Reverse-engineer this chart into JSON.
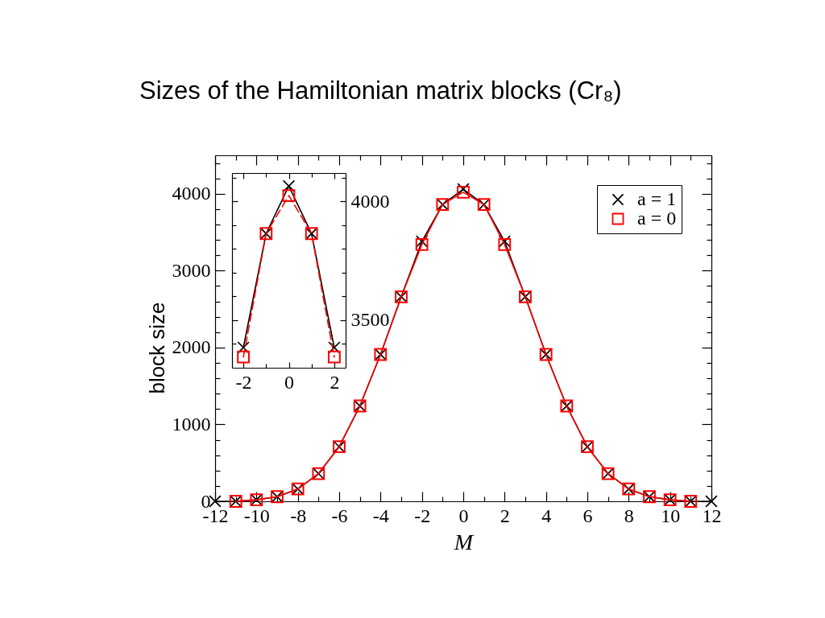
{
  "chart_data": [
    {
      "type": "line",
      "title": "Sizes of the Hamiltonian matrix blocks (Cr₈)",
      "xlabel": "M",
      "ylabel": "block size",
      "legend": "top right",
      "line_style": "solid",
      "x": [
        -12,
        -11,
        -10,
        -9,
        -8,
        -7,
        -6,
        -5,
        -4,
        -3,
        -2,
        -1,
        0,
        1,
        2,
        3,
        4,
        5,
        6,
        7,
        8,
        9,
        10,
        11,
        12
      ],
      "series": [
        {
          "name": "a = 1",
          "color": "#000000",
          "marker": "cross",
          "values": [
            0,
            0,
            20,
            60,
            160,
            360,
            710,
            1240,
            1910,
            2660,
            3380,
            3860,
            4060,
            3860,
            3380,
            2660,
            1910,
            1240,
            710,
            360,
            160,
            60,
            20,
            0,
            0
          ]
        },
        {
          "name": "a = 0",
          "color": "#ff0000",
          "marker": "square",
          "values": [
            null,
            0,
            20,
            60,
            160,
            360,
            710,
            1240,
            1910,
            2660,
            3340,
            3860,
            4020,
            3860,
            3340,
            2660,
            1910,
            1240,
            710,
            360,
            160,
            60,
            20,
            0,
            null
          ]
        }
      ],
      "xlim": [
        -12,
        12
      ],
      "ylim": [
        0,
        4500
      ],
      "xticks": [
        -12,
        {
          "value": -11,
          "label": null
        },
        -10,
        {
          "value": -9,
          "label": null
        },
        -8,
        {
          "value": -7,
          "label": null
        },
        -6,
        {
          "value": -5,
          "label": null
        },
        -4,
        {
          "value": -3,
          "label": null
        },
        -2,
        {
          "value": -1,
          "label": null
        },
        0,
        {
          "value": 1,
          "label": null
        },
        2,
        {
          "value": 3,
          "label": null
        },
        4,
        {
          "value": 5,
          "label": null
        },
        6,
        {
          "value": 7,
          "label": null
        },
        8,
        {
          "value": 9,
          "label": null
        },
        10,
        {
          "value": 11,
          "label": null
        },
        12
      ],
      "yticks": [
        0,
        {
          "value": 200,
          "label": null
        },
        {
          "value": 400,
          "label": null
        },
        {
          "value": 600,
          "label": null
        },
        {
          "value": 800,
          "label": null
        },
        1000,
        {
          "value": 1200,
          "label": null
        },
        {
          "value": 1400,
          "label": null
        },
        {
          "value": 1600,
          "label": null
        },
        {
          "value": 1800,
          "label": null
        },
        2000,
        {
          "value": 2200,
          "label": null
        },
        {
          "value": 2400,
          "label": null
        },
        {
          "value": 2600,
          "label": null
        },
        {
          "value": 2800,
          "label": null
        },
        3000,
        {
          "value": 3200,
          "label": null
        },
        {
          "value": 3400,
          "label": null
        },
        {
          "value": 3600,
          "label": null
        },
        {
          "value": 3800,
          "label": null
        },
        4000,
        {
          "value": 4200,
          "label": null
        },
        {
          "value": 4400,
          "label": null
        }
      ]
    },
    {
      "type": "line",
      "x": [
        -2,
        -1,
        0,
        1,
        2
      ],
      "series": [
        {
          "color": "#000000",
          "marker": "cross",
          "line_style": "solid",
          "values": [
            3385,
            3865,
            4065,
            3865,
            3385
          ]
        },
        {
          "color": "#ff0000",
          "marker": "square",
          "line_style": "dashed",
          "values": [
            3345,
            3865,
            4025,
            3865,
            3345
          ]
        }
      ],
      "xlim": [
        -2.5,
        2.5
      ],
      "ylim": [
        3300,
        4120
      ],
      "xticks": [
        -2,
        {
          "value": -1,
          "label": null
        },
        0,
        {
          "value": 1,
          "label": null
        },
        2
      ],
      "yticks": [
        {
          "value": 3400,
          "label": null
        },
        3500,
        {
          "value": 3600,
          "label": null
        },
        {
          "value": 3700,
          "label": null
        },
        {
          "value": 3800,
          "label": null
        },
        {
          "value": 3900,
          "label": null
        },
        4000,
        {
          "value": 4100,
          "label": null
        }
      ]
    }
  ]
}
